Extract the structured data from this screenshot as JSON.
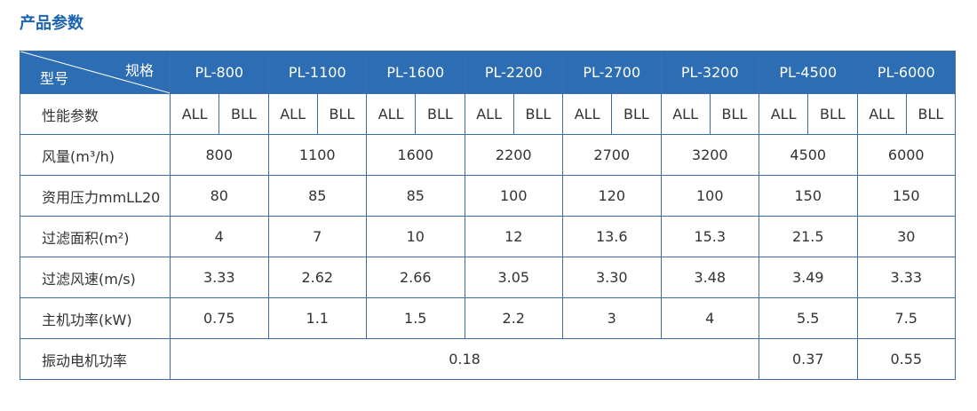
{
  "header": {
    "title": "产品参数"
  },
  "table": {
    "corner_top": "规格",
    "corner_bottom": "型号",
    "models": [
      "PL-800",
      "PL-1100",
      "PL-1600",
      "PL-2200",
      "PL-2700",
      "PL-3200",
      "PL-4500",
      "PL-6000"
    ],
    "subheader": {
      "label": "性能参数",
      "values": [
        [
          "ALL",
          "BLL"
        ],
        [
          "ALL",
          "BLL"
        ],
        [
          "ALL",
          "BLL"
        ],
        [
          "ALL",
          "BLL"
        ],
        [
          "ALL",
          "BLL"
        ],
        [
          "ALL",
          "BLL"
        ],
        [
          "ALL",
          "BLL"
        ],
        [
          "ALL",
          "BLL"
        ]
      ]
    },
    "rows": [
      {
        "label": "风量(m³/h)",
        "values": [
          "800",
          "1100",
          "1600",
          "2200",
          "2700",
          "3200",
          "4500",
          "6000"
        ]
      },
      {
        "label": "资用压力mmLL20",
        "values": [
          "80",
          "85",
          "85",
          "100",
          "120",
          "100",
          "150",
          "150"
        ]
      },
      {
        "label": "过滤面积(m²)",
        "values": [
          "4",
          "7",
          "10",
          "12",
          "13.6",
          "15.3",
          "21.5",
          "30"
        ]
      },
      {
        "label": "过滤风速(m/s)",
        "values": [
          "3.33",
          "2.62",
          "2.66",
          "3.05",
          "3.30",
          "3.48",
          "3.49",
          "3.33"
        ]
      },
      {
        "label": "主机功率(kW)",
        "values": [
          "0.75",
          "1.1",
          "1.5",
          "2.2",
          "3",
          "4",
          "5.5",
          "7.5"
        ]
      },
      {
        "label": "振动电机功率",
        "values": [
          "0.18",
          "0.37",
          "0.55"
        ]
      }
    ]
  }
}
